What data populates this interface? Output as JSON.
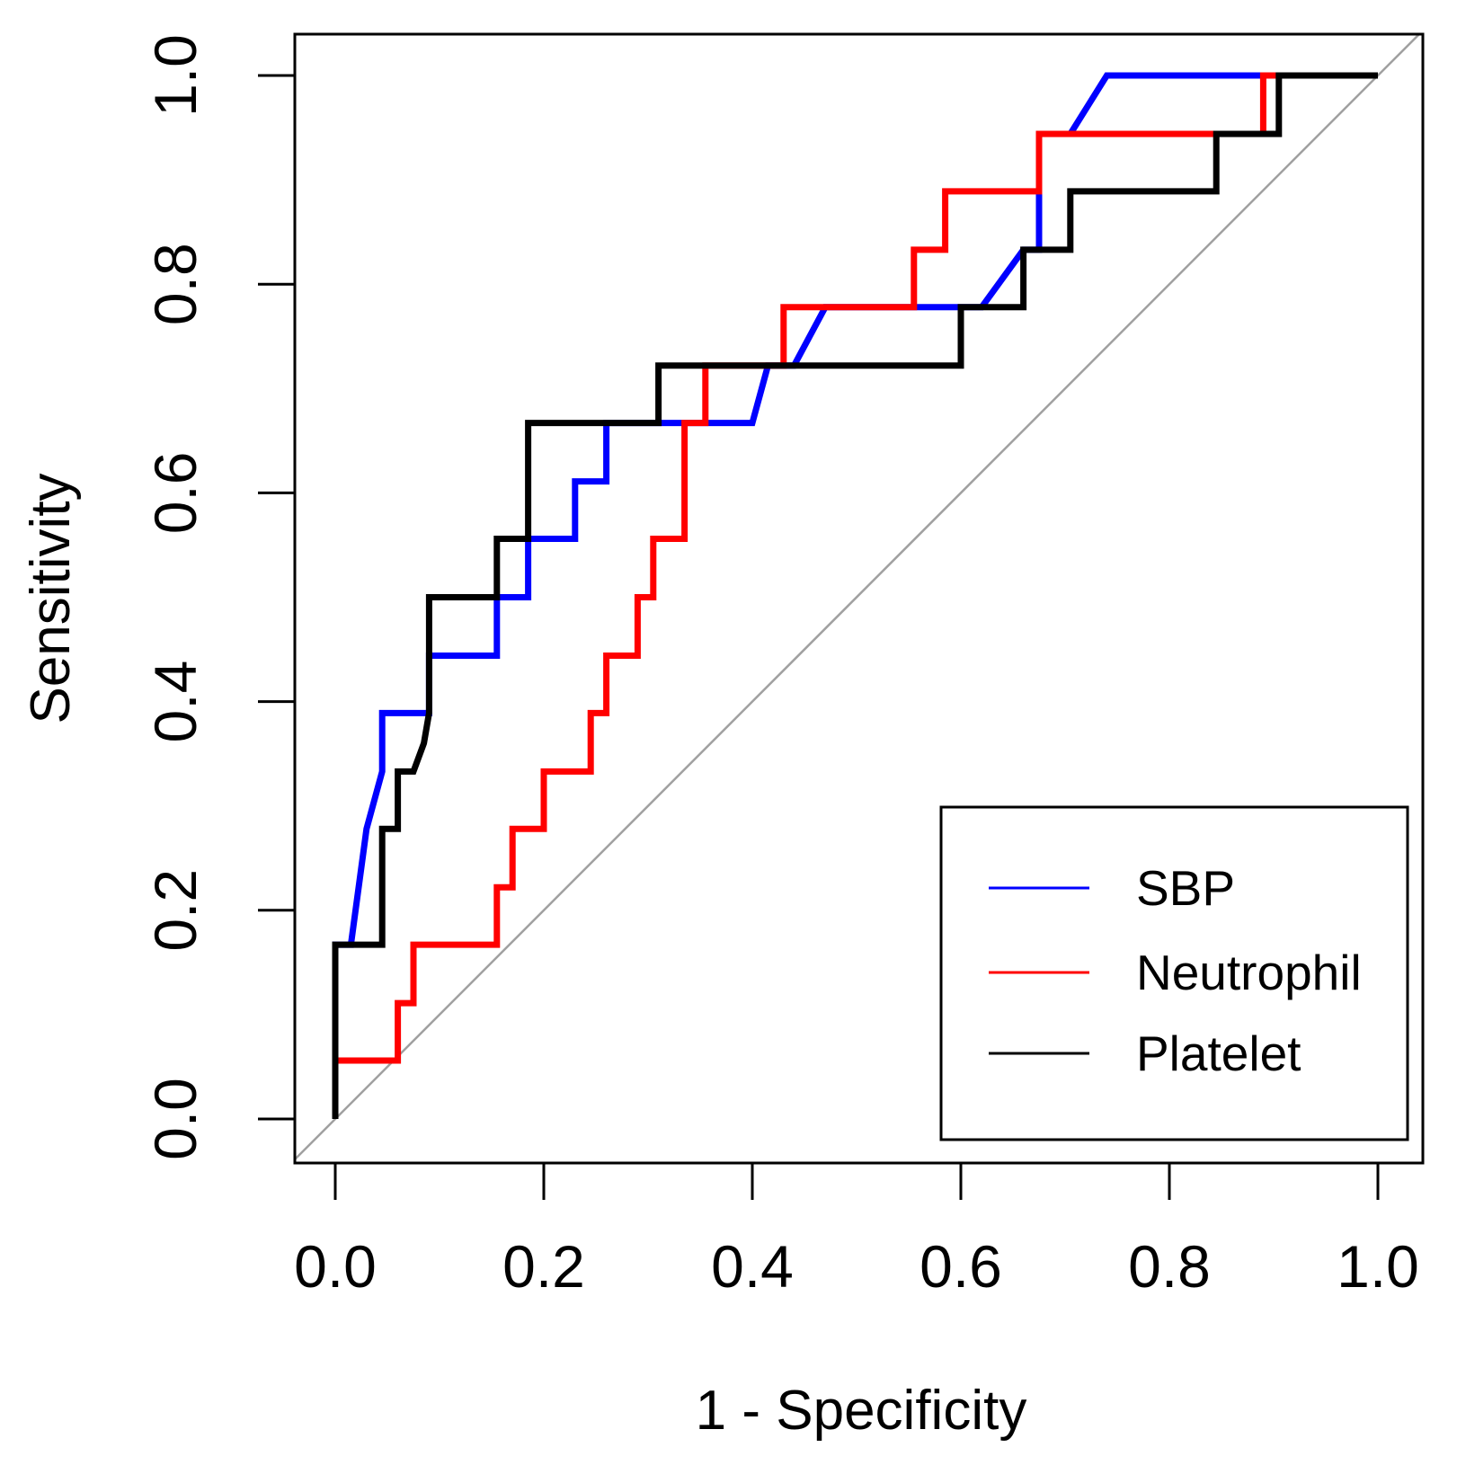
{
  "chart_data": {
    "type": "line",
    "title": "",
    "xlabel": "1 - Specificity",
    "ylabel": "Sensitivity",
    "xlim": [
      0,
      1
    ],
    "ylim": [
      0,
      1
    ],
    "xticks": [
      0.0,
      0.2,
      0.4,
      0.6,
      0.8,
      1.0
    ],
    "yticks": [
      0.0,
      0.2,
      0.4,
      0.6,
      0.8,
      1.0
    ],
    "xtick_labels": [
      "0.0",
      "0.2",
      "0.4",
      "0.6",
      "0.8",
      "1.0"
    ],
    "ytick_labels": [
      "0.0",
      "0.2",
      "0.4",
      "0.6",
      "0.8",
      "1.0"
    ],
    "grid": false,
    "legend_position": "bottom-right",
    "reference_line": {
      "name": "chance",
      "x": [
        0,
        1
      ],
      "y": [
        0,
        1
      ],
      "color": "#a0a0a0"
    },
    "series": [
      {
        "name": "SBP",
        "color": "#0000ff",
        "x": [
          0.0,
          0.0,
          0.015,
          0.03,
          0.045,
          0.045,
          0.09,
          0.09,
          0.155,
          0.155,
          0.185,
          0.185,
          0.23,
          0.23,
          0.26,
          0.26,
          0.31,
          0.4,
          0.415,
          0.44,
          0.47,
          0.55,
          0.6,
          0.62,
          0.66,
          0.675,
          0.675,
          0.705,
          0.74,
          0.89,
          0.91,
          1.0
        ],
        "y": [
          0.0,
          0.167,
          0.167,
          0.278,
          0.333,
          0.389,
          0.389,
          0.444,
          0.444,
          0.5,
          0.5,
          0.556,
          0.556,
          0.611,
          0.611,
          0.667,
          0.667,
          0.667,
          0.722,
          0.722,
          0.778,
          0.778,
          0.778,
          0.778,
          0.833,
          0.833,
          0.944,
          0.944,
          1.0,
          1.0,
          1.0,
          1.0
        ]
      },
      {
        "name": "Neutrophil",
        "color": "#ff0000",
        "x": [
          0.0,
          0.0,
          0.06,
          0.06,
          0.075,
          0.075,
          0.155,
          0.155,
          0.17,
          0.17,
          0.2,
          0.2,
          0.245,
          0.245,
          0.26,
          0.26,
          0.29,
          0.29,
          0.305,
          0.305,
          0.335,
          0.335,
          0.355,
          0.355,
          0.43,
          0.43,
          0.555,
          0.555,
          0.585,
          0.585,
          0.675,
          0.675,
          0.89,
          0.89,
          1.0
        ],
        "y": [
          0.0,
          0.056,
          0.056,
          0.111,
          0.111,
          0.167,
          0.167,
          0.222,
          0.222,
          0.278,
          0.278,
          0.333,
          0.333,
          0.389,
          0.389,
          0.444,
          0.444,
          0.5,
          0.5,
          0.556,
          0.556,
          0.667,
          0.667,
          0.722,
          0.722,
          0.778,
          0.778,
          0.833,
          0.833,
          0.889,
          0.889,
          0.944,
          0.944,
          1.0,
          1.0
        ]
      },
      {
        "name": "Platelet",
        "color": "#000000",
        "x": [
          0.0,
          0.0,
          0.045,
          0.045,
          0.06,
          0.06,
          0.075,
          0.085,
          0.09,
          0.09,
          0.155,
          0.155,
          0.185,
          0.185,
          0.31,
          0.31,
          0.6,
          0.6,
          0.66,
          0.66,
          0.705,
          0.705,
          0.845,
          0.845,
          0.905,
          0.905,
          1.0
        ],
        "y": [
          0.0,
          0.167,
          0.167,
          0.278,
          0.278,
          0.333,
          0.333,
          0.36,
          0.389,
          0.5,
          0.5,
          0.556,
          0.556,
          0.667,
          0.667,
          0.722,
          0.722,
          0.778,
          0.778,
          0.833,
          0.833,
          0.889,
          0.889,
          0.944,
          0.944,
          1.0,
          1.0
        ]
      }
    ]
  }
}
